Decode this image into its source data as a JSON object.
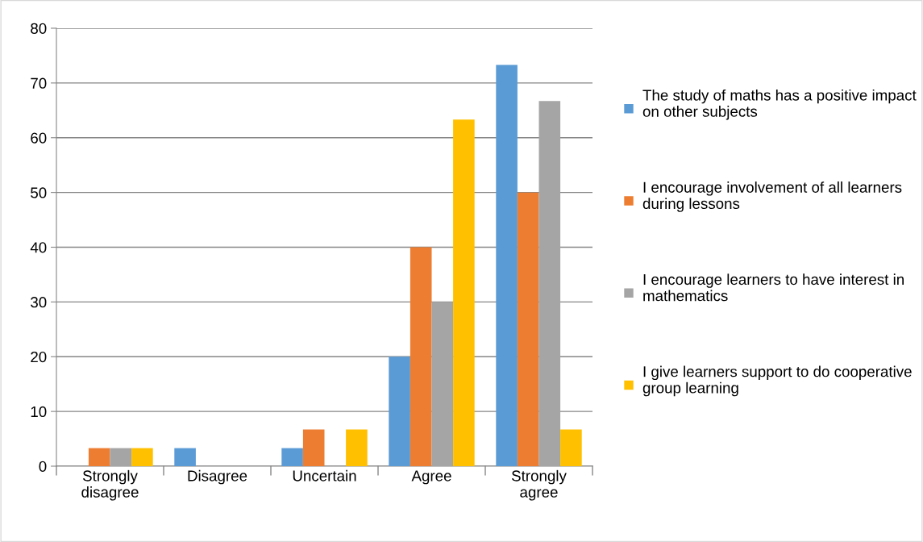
{
  "chart_data": {
    "type": "bar",
    "categories": [
      "Strongly disagree",
      "Disagree",
      "Uncertain",
      "Agree",
      "Strongly agree"
    ],
    "series": [
      {
        "name": "The study of maths has a positive impact on other subjects",
        "color": "#5b9bd5",
        "values": [
          0,
          3.3,
          3.3,
          20,
          73.3
        ]
      },
      {
        "name": "I encourage involvement of all learners during lessons",
        "color": "#ed7d31",
        "values": [
          3.3,
          0,
          6.7,
          40,
          50
        ]
      },
      {
        "name": "I encourage learners to have interest in mathematics",
        "color": "#a5a5a5",
        "values": [
          3.3,
          0,
          0,
          30,
          66.7
        ]
      },
      {
        "name": "I give learners support to do cooperative group learning",
        "color": "#ffc000",
        "values": [
          3.3,
          0,
          6.7,
          63.3,
          6.7
        ]
      }
    ],
    "ylim": [
      0,
      80
    ],
    "yticks": [
      0,
      10,
      20,
      30,
      40,
      50,
      60,
      70,
      80
    ],
    "grid": "y",
    "legend": "right"
  }
}
